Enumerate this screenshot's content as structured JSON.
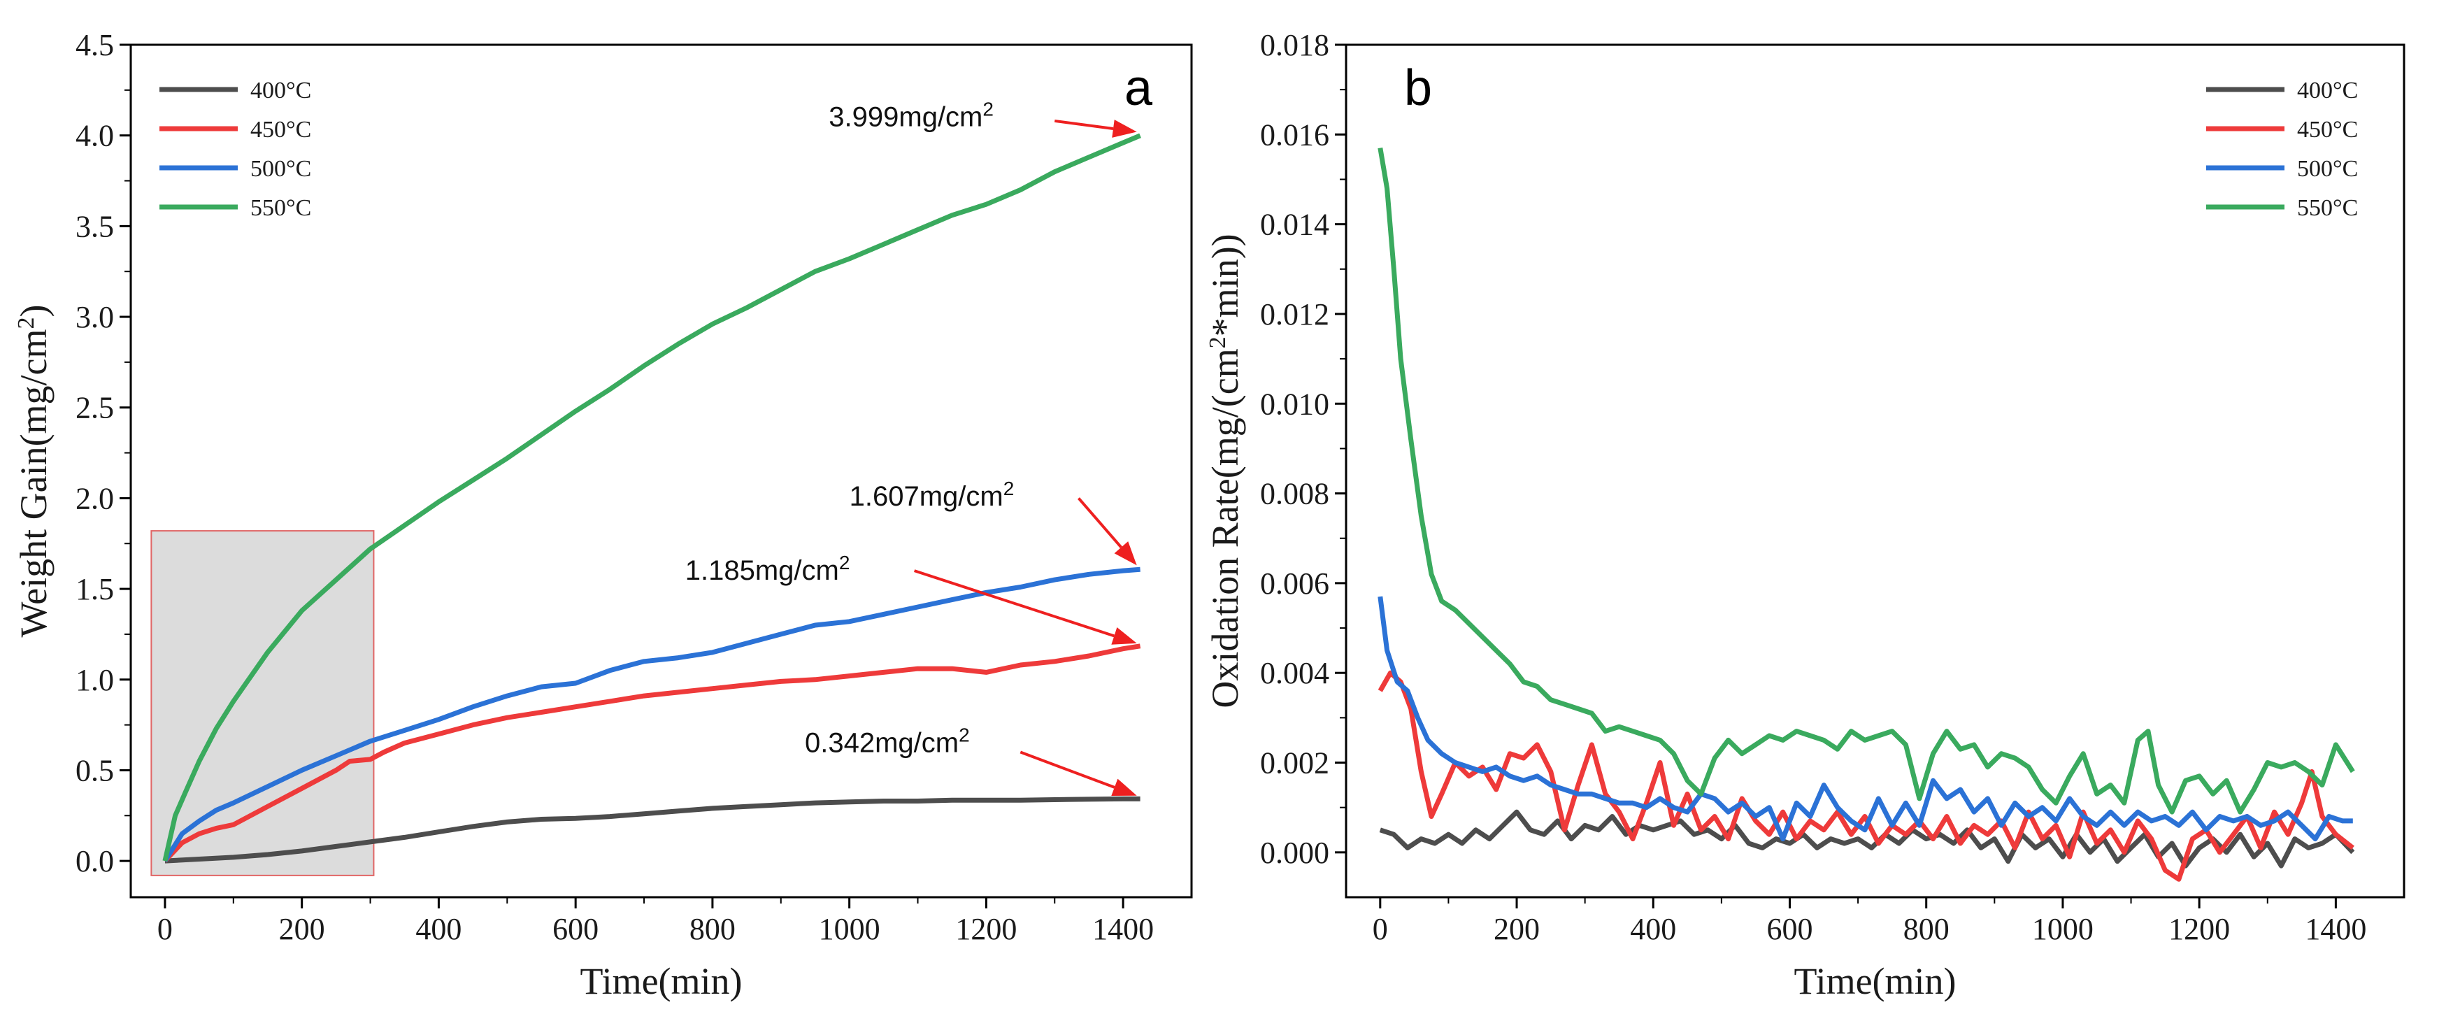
{
  "chart_data": [
    {
      "type": "line",
      "panel_label": "a",
      "xlabel": "Time(min)",
      "ylabel": "Weight Gain(mg/cm",
      "ylabel_sup": "2",
      "ylabel_end": ")",
      "xlim": [
        -50,
        1500
      ],
      "ylim": [
        -0.2,
        4.5
      ],
      "xticks": [
        0,
        200,
        400,
        600,
        800,
        1000,
        1200,
        1400
      ],
      "yticks": [
        "0.0",
        "0.5",
        "1.0",
        "1.5",
        "2.0",
        "2.5",
        "3.0",
        "3.5",
        "4.0",
        "4.5"
      ],
      "legend_position": "top-left",
      "shaded_region": {
        "x": [
          -20,
          305
        ],
        "y": [
          -0.08,
          1.82
        ],
        "fill": "#dcdcdc",
        "stroke": "#e06666"
      },
      "series": [
        {
          "name": "400°C",
          "color": "#4d4d4d",
          "x": [
            0,
            50,
            100,
            150,
            200,
            250,
            300,
            350,
            400,
            450,
            500,
            550,
            600,
            650,
            700,
            750,
            800,
            850,
            900,
            950,
            1000,
            1050,
            1100,
            1150,
            1200,
            1250,
            1300,
            1350,
            1400,
            1425
          ],
          "values": [
            0,
            0.01,
            0.02,
            0.035,
            0.055,
            0.08,
            0.105,
            0.13,
            0.16,
            0.19,
            0.215,
            0.23,
            0.235,
            0.245,
            0.26,
            0.275,
            0.29,
            0.3,
            0.31,
            0.32,
            0.325,
            0.33,
            0.33,
            0.335,
            0.335,
            0.335,
            0.338,
            0.34,
            0.342,
            0.342
          ]
        },
        {
          "name": "450°C",
          "color": "#ee3a3a",
          "x": [
            0,
            25,
            50,
            75,
            100,
            150,
            200,
            250,
            270,
            300,
            320,
            350,
            400,
            450,
            500,
            550,
            600,
            650,
            700,
            750,
            800,
            850,
            900,
            950,
            1000,
            1050,
            1100,
            1150,
            1200,
            1250,
            1300,
            1350,
            1400,
            1425
          ],
          "values": [
            0,
            0.1,
            0.15,
            0.18,
            0.2,
            0.3,
            0.4,
            0.5,
            0.55,
            0.56,
            0.6,
            0.65,
            0.7,
            0.75,
            0.79,
            0.82,
            0.85,
            0.88,
            0.91,
            0.93,
            0.95,
            0.97,
            0.99,
            1.0,
            1.02,
            1.04,
            1.06,
            1.06,
            1.04,
            1.08,
            1.1,
            1.13,
            1.17,
            1.185
          ]
        },
        {
          "name": "500°C",
          "color": "#2b72d6",
          "x": [
            0,
            25,
            50,
            75,
            100,
            150,
            200,
            250,
            300,
            350,
            400,
            450,
            500,
            550,
            600,
            650,
            700,
            750,
            800,
            850,
            900,
            950,
            1000,
            1050,
            1100,
            1150,
            1200,
            1250,
            1300,
            1350,
            1400,
            1425
          ],
          "values": [
            0,
            0.15,
            0.22,
            0.28,
            0.32,
            0.41,
            0.5,
            0.58,
            0.66,
            0.72,
            0.78,
            0.85,
            0.91,
            0.96,
            0.98,
            1.05,
            1.1,
            1.12,
            1.15,
            1.2,
            1.25,
            1.3,
            1.32,
            1.36,
            1.4,
            1.44,
            1.48,
            1.51,
            1.55,
            1.58,
            1.6,
            1.607
          ]
        },
        {
          "name": "550°C",
          "color": "#3aaa5e",
          "x": [
            0,
            15,
            30,
            50,
            75,
            100,
            150,
            200,
            250,
            300,
            350,
            400,
            450,
            500,
            550,
            600,
            650,
            700,
            750,
            800,
            850,
            900,
            950,
            1000,
            1050,
            1100,
            1150,
            1200,
            1250,
            1300,
            1350,
            1400,
            1425
          ],
          "values": [
            0,
            0.25,
            0.38,
            0.55,
            0.73,
            0.88,
            1.15,
            1.38,
            1.55,
            1.72,
            1.85,
            1.98,
            2.1,
            2.22,
            2.35,
            2.48,
            2.6,
            2.73,
            2.85,
            2.96,
            3.05,
            3.15,
            3.25,
            3.32,
            3.4,
            3.48,
            3.56,
            3.62,
            3.7,
            3.8,
            3.88,
            3.96,
            3.999
          ]
        }
      ],
      "annotations": [
        {
          "text": "3.999mg/cm",
          "sup": "2",
          "x": 970,
          "y": 4.05,
          "arrow_from": [
            1300,
            4.08
          ],
          "arrow_to": [
            1420,
            4.02
          ]
        },
        {
          "text": "1.607mg/cm",
          "sup": "2",
          "x": 1000,
          "y": 1.96,
          "arrow_from": [
            1335,
            2.0
          ],
          "arrow_to": [
            1420,
            1.63
          ]
        },
        {
          "text": "1.185mg/cm",
          "sup": "2",
          "x": 760,
          "y": 1.55,
          "arrow_from": [
            1095,
            1.6
          ],
          "arrow_to": [
            1420,
            1.2
          ]
        },
        {
          "text": "0.342mg/cm",
          "sup": "2",
          "x": 935,
          "y": 0.6,
          "arrow_from": [
            1250,
            0.6
          ],
          "arrow_to": [
            1420,
            0.36
          ]
        }
      ]
    },
    {
      "type": "line",
      "panel_label": "b",
      "xlabel": "Time(min)",
      "ylabel": "Oxidation Rate(mg/(cm",
      "ylabel_sup": "2",
      "ylabel_end": "*min))",
      "xlim": [
        -50,
        1500
      ],
      "ylim": [
        -0.001,
        0.018
      ],
      "xticks": [
        0,
        200,
        400,
        600,
        800,
        1000,
        1200,
        1400
      ],
      "yticks": [
        "0.000",
        "0.002",
        "0.004",
        "0.006",
        "0.008",
        "0.010",
        "0.012",
        "0.014",
        "0.016",
        "0.018"
      ],
      "legend_position": "top-right",
      "series": [
        {
          "name": "400°C",
          "color": "#4d4d4d",
          "x": [
            0,
            20,
            40,
            60,
            80,
            100,
            120,
            140,
            160,
            180,
            200,
            220,
            240,
            260,
            280,
            300,
            320,
            340,
            360,
            380,
            400,
            420,
            440,
            460,
            480,
            500,
            520,
            540,
            560,
            580,
            600,
            620,
            640,
            660,
            680,
            700,
            720,
            740,
            760,
            780,
            800,
            820,
            840,
            860,
            880,
            900,
            920,
            940,
            960,
            980,
            1000,
            1020,
            1040,
            1060,
            1080,
            1100,
            1120,
            1140,
            1160,
            1180,
            1200,
            1220,
            1240,
            1260,
            1280,
            1300,
            1320,
            1340,
            1360,
            1380,
            1400,
            1425
          ],
          "values": [
            0.0005,
            0.0004,
            0.0001,
            0.0003,
            0.0002,
            0.0004,
            0.0002,
            0.0005,
            0.0003,
            0.0006,
            0.0009,
            0.0005,
            0.0004,
            0.0007,
            0.0003,
            0.0006,
            0.0005,
            0.0008,
            0.0004,
            0.0006,
            0.0005,
            0.0006,
            0.0007,
            0.0004,
            0.0005,
            0.0003,
            0.0006,
            0.0002,
            0.0001,
            0.0003,
            0.0002,
            0.0004,
            0.0001,
            0.0003,
            0.0002,
            0.0003,
            0.0001,
            0.0004,
            0.0002,
            0.0005,
            0.0003,
            0.0004,
            0.0002,
            0.0005,
            0.0001,
            0.0003,
            -0.0002,
            0.0004,
            0.0001,
            0.0003,
            -0.0001,
            0.0004,
            0.0,
            0.0003,
            -0.0002,
            0.0001,
            0.0004,
            -0.0001,
            0.0002,
            -0.0003,
            0.0001,
            0.0003,
            0.0,
            0.0004,
            -0.0001,
            0.0002,
            -0.0003,
            0.0003,
            0.0001,
            0.0002,
            0.0004,
            0.0
          ]
        },
        {
          "name": "450°C",
          "color": "#ee3a3a",
          "x": [
            0,
            15,
            30,
            45,
            60,
            75,
            90,
            110,
            130,
            150,
            170,
            190,
            210,
            230,
            250,
            270,
            290,
            310,
            330,
            350,
            370,
            390,
            410,
            430,
            450,
            470,
            490,
            510,
            530,
            550,
            570,
            590,
            610,
            630,
            650,
            670,
            690,
            710,
            730,
            750,
            770,
            790,
            810,
            830,
            850,
            870,
            890,
            910,
            930,
            950,
            970,
            990,
            1010,
            1030,
            1050,
            1070,
            1090,
            1110,
            1130,
            1150,
            1170,
            1190,
            1210,
            1230,
            1250,
            1270,
            1290,
            1310,
            1330,
            1350,
            1365,
            1380,
            1400,
            1425
          ],
          "values": [
            0.0036,
            0.004,
            0.0038,
            0.0032,
            0.0018,
            0.0008,
            0.0013,
            0.002,
            0.0017,
            0.0019,
            0.0014,
            0.0022,
            0.0021,
            0.0024,
            0.0018,
            0.0005,
            0.0015,
            0.0024,
            0.0013,
            0.0009,
            0.0003,
            0.0011,
            0.002,
            0.0006,
            0.0013,
            0.0005,
            0.0008,
            0.0003,
            0.0012,
            0.0007,
            0.0004,
            0.0009,
            0.0003,
            0.0007,
            0.0005,
            0.0009,
            0.0004,
            0.0008,
            0.0002,
            0.0006,
            0.0004,
            0.0007,
            0.0003,
            0.0008,
            0.0002,
            0.0006,
            0.0004,
            0.0007,
            0.0001,
            0.0009,
            0.0003,
            0.0006,
            -0.0001,
            0.0009,
            0.0002,
            0.0005,
            0.0,
            0.0007,
            0.0003,
            -0.0004,
            -0.0006,
            0.0003,
            0.0005,
            0.0,
            0.0004,
            0.0008,
            0.0001,
            0.0009,
            0.0004,
            0.0011,
            0.0018,
            0.0008,
            0.0004,
            0.0001
          ]
        },
        {
          "name": "500°C",
          "color": "#2b72d6",
          "x": [
            0,
            10,
            25,
            40,
            55,
            70,
            90,
            110,
            130,
            150,
            170,
            190,
            210,
            230,
            250,
            270,
            290,
            310,
            330,
            350,
            370,
            390,
            410,
            430,
            450,
            470,
            490,
            510,
            530,
            550,
            570,
            590,
            610,
            630,
            650,
            670,
            690,
            710,
            730,
            750,
            770,
            790,
            810,
            830,
            850,
            870,
            890,
            910,
            930,
            950,
            970,
            990,
            1010,
            1030,
            1050,
            1070,
            1090,
            1110,
            1130,
            1150,
            1170,
            1190,
            1210,
            1230,
            1250,
            1270,
            1290,
            1310,
            1330,
            1350,
            1370,
            1390,
            1410,
            1425
          ],
          "values": [
            0.0057,
            0.0045,
            0.0038,
            0.0036,
            0.003,
            0.0025,
            0.0022,
            0.002,
            0.0019,
            0.0018,
            0.0019,
            0.0017,
            0.0016,
            0.0017,
            0.0015,
            0.0014,
            0.0013,
            0.0013,
            0.0012,
            0.0011,
            0.0011,
            0.001,
            0.0012,
            0.001,
            0.0009,
            0.0013,
            0.0012,
            0.0009,
            0.0011,
            0.0008,
            0.001,
            0.0003,
            0.0011,
            0.0008,
            0.0015,
            0.001,
            0.0007,
            0.0005,
            0.0012,
            0.0006,
            0.0011,
            0.0006,
            0.0016,
            0.0012,
            0.0014,
            0.0009,
            0.0012,
            0.0006,
            0.0011,
            0.0008,
            0.001,
            0.0007,
            0.0012,
            0.0008,
            0.0006,
            0.0009,
            0.0006,
            0.0009,
            0.0007,
            0.0008,
            0.0006,
            0.0009,
            0.0005,
            0.0008,
            0.0007,
            0.0008,
            0.0006,
            0.0007,
            0.0009,
            0.0006,
            0.0003,
            0.0008,
            0.0007,
            0.0007
          ]
        },
        {
          "name": "550°C",
          "color": "#3aaa5e",
          "x": [
            0,
            10,
            20,
            30,
            45,
            60,
            75,
            90,
            110,
            130,
            150,
            170,
            190,
            210,
            230,
            250,
            270,
            290,
            310,
            330,
            350,
            370,
            390,
            410,
            430,
            450,
            470,
            490,
            510,
            530,
            550,
            570,
            590,
            610,
            630,
            650,
            670,
            690,
            710,
            730,
            750,
            770,
            790,
            810,
            830,
            850,
            870,
            890,
            910,
            930,
            950,
            970,
            990,
            1010,
            1030,
            1050,
            1070,
            1090,
            1110,
            1125,
            1140,
            1160,
            1180,
            1200,
            1220,
            1240,
            1260,
            1280,
            1300,
            1320,
            1340,
            1360,
            1380,
            1400,
            1425
          ],
          "values": [
            0.0157,
            0.0148,
            0.013,
            0.011,
            0.0092,
            0.0075,
            0.0062,
            0.0056,
            0.0054,
            0.0051,
            0.0048,
            0.0045,
            0.0042,
            0.0038,
            0.0037,
            0.0034,
            0.0033,
            0.0032,
            0.0031,
            0.0027,
            0.0028,
            0.0027,
            0.0026,
            0.0025,
            0.0022,
            0.0016,
            0.0013,
            0.0021,
            0.0025,
            0.0022,
            0.0024,
            0.0026,
            0.0025,
            0.0027,
            0.0026,
            0.0025,
            0.0023,
            0.0027,
            0.0025,
            0.0026,
            0.0027,
            0.0024,
            0.0012,
            0.0022,
            0.0027,
            0.0023,
            0.0024,
            0.0019,
            0.0022,
            0.0021,
            0.0019,
            0.0014,
            0.0011,
            0.0017,
            0.0022,
            0.0013,
            0.0015,
            0.0011,
            0.0025,
            0.0027,
            0.0015,
            0.0009,
            0.0016,
            0.0017,
            0.0013,
            0.0016,
            0.0009,
            0.0014,
            0.002,
            0.0019,
            0.002,
            0.0018,
            0.0015,
            0.0024,
            0.0018
          ]
        }
      ]
    }
  ]
}
